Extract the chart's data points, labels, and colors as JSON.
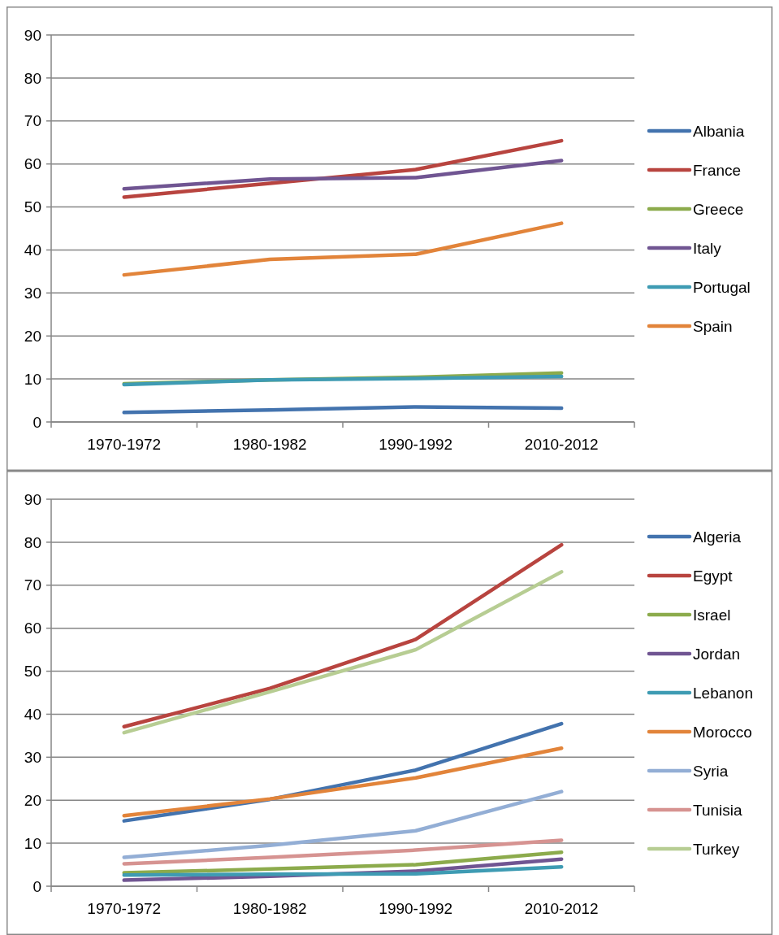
{
  "chart_data": [
    {
      "type": "line",
      "categories": [
        "1970-1972",
        "1980-1982",
        "1990-1992",
        "2010-2012"
      ],
      "ylim": [
        0,
        90
      ],
      "yticks": [
        0,
        10,
        20,
        30,
        40,
        50,
        60,
        70,
        80,
        90
      ],
      "grid": "y",
      "legend": "right",
      "marker": "none",
      "line_style": "solid",
      "series": [
        {
          "name": "Albania",
          "color": "#4373ae",
          "values": [
            2.2,
            2.8,
            3.5,
            3.2
          ]
        },
        {
          "name": "France",
          "color": "#b8443f",
          "values": [
            52.3,
            55.5,
            58.7,
            65.4
          ]
        },
        {
          "name": "Greece",
          "color": "#8cab4c",
          "values": [
            8.9,
            9.8,
            10.4,
            11.4
          ]
        },
        {
          "name": "Italy",
          "color": "#705592",
          "values": [
            54.2,
            56.5,
            56.8,
            60.8
          ]
        },
        {
          "name": "Portugal",
          "color": "#3e9bb3",
          "values": [
            8.7,
            9.8,
            10.1,
            10.6
          ]
        },
        {
          "name": "Spain",
          "color": "#e2843a",
          "values": [
            34.2,
            37.8,
            39.0,
            46.2
          ]
        }
      ]
    },
    {
      "type": "line",
      "categories": [
        "1970-1972",
        "1980-1982",
        "1990-1992",
        "2010-2012"
      ],
      "ylim": [
        0,
        90
      ],
      "yticks": [
        0,
        10,
        20,
        30,
        40,
        50,
        60,
        70,
        80,
        90
      ],
      "grid": "y",
      "legend": "right",
      "marker": "none",
      "line_style": "solid",
      "series": [
        {
          "name": "Algeria",
          "color": "#4373ae",
          "values": [
            15.2,
            20.2,
            27.0,
            37.8
          ]
        },
        {
          "name": "Egypt",
          "color": "#b8443f",
          "values": [
            37.1,
            46.0,
            57.4,
            79.4
          ]
        },
        {
          "name": "Israel",
          "color": "#8cab4c",
          "values": [
            3.1,
            4.0,
            5.0,
            7.9
          ]
        },
        {
          "name": "Jordan",
          "color": "#705592",
          "values": [
            1.4,
            2.3,
            3.5,
            6.3
          ]
        },
        {
          "name": "Lebanon",
          "color": "#3e9bb3",
          "values": [
            2.6,
            2.8,
            2.9,
            4.5
          ]
        },
        {
          "name": "Morocco",
          "color": "#e2843a",
          "values": [
            16.4,
            20.3,
            25.2,
            32.1
          ]
        },
        {
          "name": "Syria",
          "color": "#93aed5",
          "values": [
            6.7,
            9.5,
            12.9,
            22.0
          ]
        },
        {
          "name": "Tunisia",
          "color": "#d69391",
          "values": [
            5.2,
            6.7,
            8.4,
            10.7
          ]
        },
        {
          "name": "Turkey",
          "color": "#b7cd93",
          "values": [
            35.7,
            45.2,
            55.0,
            73.1
          ]
        }
      ]
    }
  ]
}
